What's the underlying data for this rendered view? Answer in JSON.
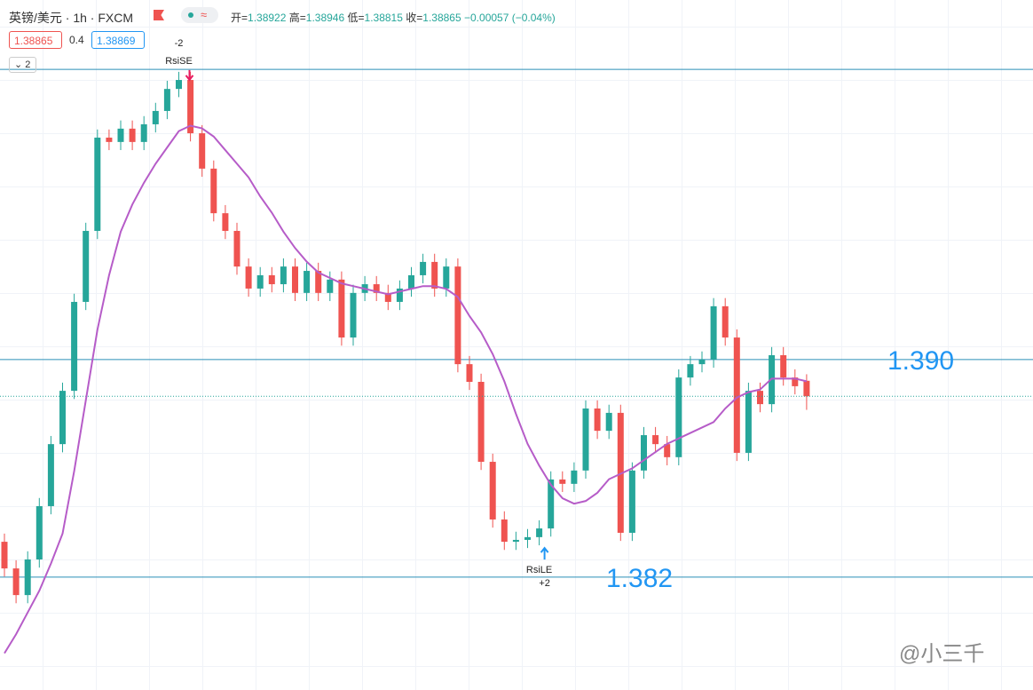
{
  "header": {
    "symbol": "英镑/美元 · 1h · FXCM",
    "open_label": "开=",
    "high_label": "高=",
    "low_label": "低=",
    "close_label": "收=",
    "change": "−0.00057 (−0.04%)",
    "bid": 1.38865,
    "spread": 0.4,
    "ask": 1.38869,
    "collapse_count": 2
  },
  "watermark": "@小三千",
  "chart_data": {
    "type": "candlestick",
    "ylim": [
      1.37785,
      1.40322
    ],
    "up_color": "#26a69a",
    "down_color": "#ef5350",
    "open": [
      1.3833,
      1.38232,
      1.38134,
      1.38265,
      1.38461,
      1.38689,
      1.38885,
      1.39212,
      1.39473,
      1.39816,
      1.398,
      1.39849,
      1.398,
      1.39865,
      1.39914,
      1.39995,
      1.40028,
      1.39832,
      1.39702,
      1.39538,
      1.39473,
      1.39342,
      1.39261,
      1.3931,
      1.39277,
      1.39342,
      1.39245,
      1.39326,
      1.39245,
      1.39294,
      1.39081,
      1.39245,
      1.39277,
      1.39245,
      1.39212,
      1.39261,
      1.3931,
      1.39359,
      1.39261,
      1.39342,
      1.38983,
      1.38918,
      1.38624,
      1.38412,
      1.3833,
      1.38337,
      1.38347,
      1.38379,
      1.38559,
      1.38543,
      1.38592,
      1.3882,
      1.38738,
      1.38804,
      1.38363,
      1.38592,
      1.38722,
      1.38689,
      1.38641,
      1.38934,
      1.38983,
      1.39,
      1.39196,
      1.39081,
      1.38657,
      1.38885,
      1.38836,
      1.39016,
      1.38934,
      1.38922
    ],
    "high": [
      1.3836,
      1.38262,
      1.38295,
      1.38491,
      1.38719,
      1.38915,
      1.39242,
      1.39503,
      1.39846,
      1.39846,
      1.39879,
      1.39879,
      1.39895,
      1.39944,
      1.40025,
      1.40058,
      1.40058,
      1.39862,
      1.39732,
      1.39568,
      1.39503,
      1.39372,
      1.3934,
      1.3934,
      1.39372,
      1.39372,
      1.39356,
      1.39356,
      1.39324,
      1.39324,
      1.39275,
      1.39307,
      1.39307,
      1.39275,
      1.39291,
      1.3934,
      1.39389,
      1.39389,
      1.39372,
      1.39372,
      1.39013,
      1.38948,
      1.38654,
      1.38442,
      1.38367,
      1.38377,
      1.38409,
      1.38589,
      1.38589,
      1.38622,
      1.3885,
      1.3885,
      1.38834,
      1.38834,
      1.38622,
      1.38752,
      1.38752,
      1.38719,
      1.38964,
      1.39013,
      1.3903,
      1.39226,
      1.39226,
      1.39111,
      1.38915,
      1.38915,
      1.39046,
      1.39046,
      1.38964,
      1.38946
    ],
    "low": [
      1.38202,
      1.38104,
      1.38104,
      1.38235,
      1.38431,
      1.38659,
      1.38855,
      1.39182,
      1.39443,
      1.3977,
      1.3977,
      1.3977,
      1.3977,
      1.39835,
      1.39884,
      1.39965,
      1.39802,
      1.39672,
      1.39508,
      1.39443,
      1.39312,
      1.39231,
      1.39231,
      1.39247,
      1.39247,
      1.39215,
      1.39215,
      1.39215,
      1.39215,
      1.39051,
      1.39051,
      1.39215,
      1.39215,
      1.39182,
      1.39182,
      1.39231,
      1.3928,
      1.39231,
      1.39231,
      1.38953,
      1.38888,
      1.38594,
      1.38382,
      1.383,
      1.383,
      1.38307,
      1.38317,
      1.38349,
      1.38513,
      1.38513,
      1.38562,
      1.38708,
      1.38708,
      1.38333,
      1.38333,
      1.38562,
      1.38659,
      1.38611,
      1.38611,
      1.38904,
      1.38953,
      1.3897,
      1.39051,
      1.38627,
      1.38627,
      1.38806,
      1.38806,
      1.38904,
      1.38872,
      1.38815
    ],
    "close": [
      1.38232,
      1.38134,
      1.38265,
      1.38461,
      1.38689,
      1.38885,
      1.39212,
      1.39473,
      1.39816,
      1.398,
      1.39849,
      1.398,
      1.39865,
      1.39914,
      1.39995,
      1.40028,
      1.39832,
      1.39702,
      1.39538,
      1.39473,
      1.39342,
      1.39261,
      1.3931,
      1.39277,
      1.39342,
      1.39245,
      1.39326,
      1.39245,
      1.39294,
      1.39081,
      1.39245,
      1.39277,
      1.39245,
      1.39212,
      1.39261,
      1.3931,
      1.39359,
      1.39261,
      1.39342,
      1.38983,
      1.38918,
      1.38624,
      1.38412,
      1.3833,
      1.38337,
      1.38347,
      1.38379,
      1.38559,
      1.38543,
      1.38592,
      1.3882,
      1.38738,
      1.38804,
      1.38363,
      1.38592,
      1.38722,
      1.38689,
      1.38641,
      1.38934,
      1.38983,
      1.39,
      1.39196,
      1.39081,
      1.38657,
      1.38885,
      1.38836,
      1.39016,
      1.38934,
      1.38902,
      1.38865
    ],
    "ma": {
      "color": "#b65cc8",
      "values": [
        1.3792,
        1.3799,
        1.3807,
        1.3815,
        1.3825,
        1.3836,
        1.3859,
        1.3885,
        1.3911,
        1.3931,
        1.3947,
        1.3957,
        1.3965,
        1.3972,
        1.3978,
        1.3984,
        1.3986,
        1.3985,
        1.3982,
        1.3977,
        1.3972,
        1.3967,
        1.396,
        1.3954,
        1.3947,
        1.3941,
        1.3936,
        1.3932,
        1.393,
        1.3928,
        1.3927,
        1.3926,
        1.3925,
        1.3924,
        1.3925,
        1.3926,
        1.3927,
        1.3927,
        1.3926,
        1.3923,
        1.3916,
        1.391,
        1.3902,
        1.3892,
        1.388,
        1.3869,
        1.3861,
        1.3854,
        1.3849,
        1.3847,
        1.3848,
        1.3851,
        1.3856,
        1.3858,
        1.386,
        1.3863,
        1.3866,
        1.3869,
        1.3871,
        1.3873,
        1.3875,
        1.3877,
        1.3882,
        1.3886,
        1.3888,
        1.3889,
        1.3893,
        1.3893,
        1.3893,
        1.3892
      ]
    },
    "hlines": [
      1.40067,
      {
        "value": 1.39,
        "label": "1.390"
      },
      {
        "value": 1.382,
        "label": "1.382"
      }
    ],
    "signals": [
      {
        "index": 15,
        "label": "RsiSE",
        "qty": "-2",
        "side": "short"
      },
      {
        "index": 46,
        "label": "RsiLE",
        "qty": "+2",
        "side": "long"
      }
    ]
  }
}
